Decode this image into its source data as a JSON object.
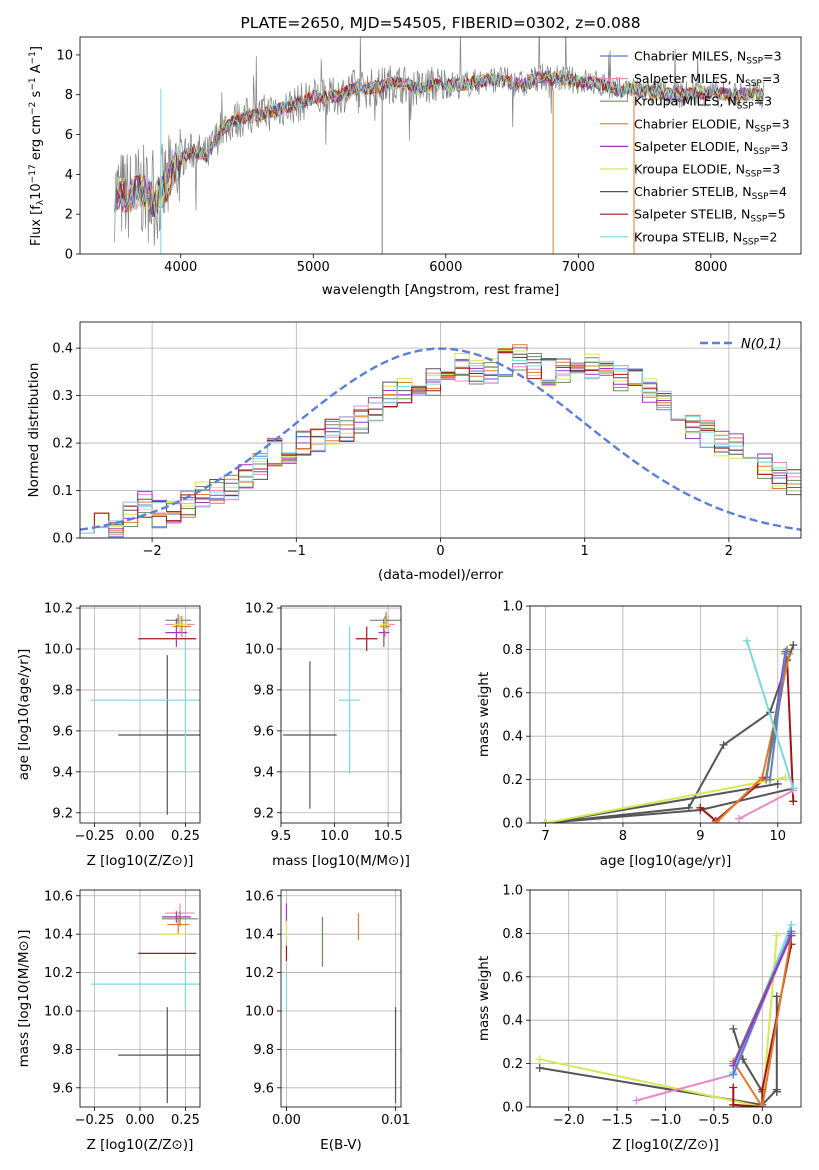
{
  "chart_data": [
    {
      "id": "spectrum",
      "type": "line",
      "title": "PLATE=2650, MJD=54505, FIBERID=0302, z=0.088",
      "xlabel": "wavelength [Angstrom, rest frame]",
      "ylabel": "Flux [f_λ 10^-17 erg cm^-2 s^-1 A^-1]",
      "xlim": [
        3240,
        8680
      ],
      "ylim": [
        0,
        10.9
      ],
      "xticks": [
        4000,
        5000,
        6000,
        7000,
        8000
      ],
      "yticks": [
        0,
        2,
        4,
        6,
        8,
        10
      ],
      "legend_position": "right",
      "legend": [
        {
          "label": "Chabrier MILES, N_SSP=3",
          "color": "#5b7fd6"
        },
        {
          "label": "Salpeter MILES, N_SSP=3",
          "color": "#e88ac6"
        },
        {
          "label": "Kroupa MILES, N_SSP=3",
          "color": "#6b8f5e"
        },
        {
          "label": "Chabrier ELODIE, N_SSP=3",
          "color": "#e07a2e"
        },
        {
          "label": "Salpeter ELODIE, N_SSP=3",
          "color": "#9b36c6"
        },
        {
          "label": "Kroupa ELODIE, N_SSP=3",
          "color": "#d9e65a"
        },
        {
          "label": "Chabrier STELIB, N_SSP=4",
          "color": "#555555"
        },
        {
          "label": "Salpeter STELIB, N_SSP=5",
          "color": "#a01616"
        },
        {
          "label": "Kroupa STELIB, N_SSP=2",
          "color": "#7fd6dc"
        }
      ],
      "data_color": "#808080",
      "x": [
        3500,
        3600,
        3700,
        3800,
        3900,
        4000,
        4100,
        4200,
        4300,
        4400,
        4500,
        4600,
        4700,
        4800,
        4900,
        5000,
        5100,
        5200,
        5300,
        5400,
        5500,
        5600,
        5700,
        5800,
        5900,
        6000,
        6100,
        6200,
        6300,
        6400,
        6500,
        6600,
        6700,
        6800,
        6900,
        7000,
        7100,
        7200,
        7300,
        7400,
        7500,
        7600,
        7700,
        7800,
        7900,
        8000,
        8100,
        8200,
        8300,
        8400
      ],
      "y": [
        3.0,
        2.9,
        3.2,
        2.7,
        3.5,
        4.8,
        5.2,
        4.9,
        6.2,
        6.7,
        6.9,
        7.0,
        7.2,
        7.4,
        7.6,
        7.9,
        7.8,
        8.0,
        8.3,
        8.3,
        8.4,
        8.6,
        8.5,
        8.3,
        8.5,
        8.5,
        8.5,
        8.6,
        8.7,
        8.8,
        8.6,
        8.5,
        8.9,
        8.8,
        8.8,
        8.7,
        8.6,
        8.5,
        8.2,
        8.3,
        8.2,
        8.1,
        8.0,
        8.0,
        8.1,
        8.1,
        8.0,
        8.0,
        8.0,
        8.0
      ]
    },
    {
      "id": "residuals",
      "type": "step",
      "xlabel": "(data-model)/error",
      "ylabel": "Normed distribution",
      "xlim": [
        -2.5,
        2.5
      ],
      "ylim": [
        0,
        0.455
      ],
      "xticks": [
        -2,
        -1,
        0,
        1,
        2
      ],
      "yticks": [
        0.0,
        0.1,
        0.2,
        0.3,
        0.4
      ],
      "legend": [
        {
          "label": "N(0,1)",
          "color": "#5b7fd6"
        }
      ],
      "bin_width": 0.1,
      "bin_start": -2.5,
      "base_values": [
        0.04,
        0.03,
        0.03,
        0.05,
        0.07,
        0.05,
        0.06,
        0.07,
        0.09,
        0.1,
        0.11,
        0.13,
        0.15,
        0.18,
        0.18,
        0.2,
        0.21,
        0.22,
        0.23,
        0.25,
        0.27,
        0.3,
        0.31,
        0.31,
        0.33,
        0.35,
        0.36,
        0.35,
        0.35,
        0.37,
        0.38,
        0.36,
        0.35,
        0.35,
        0.37,
        0.36,
        0.35,
        0.34,
        0.33,
        0.31,
        0.28,
        0.26,
        0.23,
        0.22,
        0.2,
        0.19,
        0.17,
        0.15,
        0.13,
        0.12,
        0.1,
        0.09,
        0.07,
        0.06,
        0.05,
        0.06,
        0.04,
        0.03,
        0.04,
        0.03,
        0.04
      ]
    },
    {
      "id": "age-vs-Z",
      "type": "scatter",
      "xlabel": "Z [log10(Z/Z⊙)]",
      "ylabel": "age  [log10(age/yr)]",
      "xlim": [
        -0.33,
        0.33
      ],
      "ylim": [
        9.15,
        10.21
      ],
      "xticks": [
        -0.25,
        0.0,
        0.25
      ],
      "xticklabels": [
        "−0.25",
        "0.00",
        "0.25"
      ],
      "yticks": [
        9.2,
        9.4,
        9.6,
        9.8,
        10.0,
        10.2
      ],
      "points": [
        {
          "x": 0.15,
          "y": 9.58,
          "xerr": 0.27,
          "yerr": 0.39,
          "color": "#555555"
        },
        {
          "x": 0.25,
          "y": 9.75,
          "xerr": 0.52,
          "yerr": 0.36,
          "color": "#7fd6dc"
        },
        {
          "x": 0.15,
          "y": 10.05,
          "xerr": 0.16,
          "yerr": 0.0,
          "color": "#a01616"
        },
        {
          "x": 0.22,
          "y": 10.12,
          "xerr": 0.08,
          "yerr": 0.04,
          "color": "#e88ac6"
        },
        {
          "x": 0.21,
          "y": 10.14,
          "xerr": 0.07,
          "yerr": 0.03,
          "color": "#6b8f5e"
        },
        {
          "x": 0.2,
          "y": 10.08,
          "xerr": 0.06,
          "yerr": 0.07,
          "color": "#9b36c6"
        },
        {
          "x": 0.23,
          "y": 10.11,
          "xerr": 0.05,
          "yerr": 0.05,
          "color": "#e07a2e"
        },
        {
          "x": 0.22,
          "y": 10.12,
          "xerr": 0.04,
          "yerr": 0.03,
          "color": "#d9e65a"
        }
      ]
    },
    {
      "id": "age-vs-mass",
      "type": "scatter",
      "xlabel": "mass [log10(M/M⊙)]",
      "xlim": [
        9.5,
        10.62
      ],
      "ylim": [
        9.15,
        10.21
      ],
      "xticks": [
        9.5,
        10.0,
        10.5
      ],
      "xticklabels": [
        "9.5",
        "10.0",
        "10.5"
      ],
      "yticks": [
        9.2,
        9.4,
        9.6,
        9.8,
        10.0,
        10.2
      ],
      "points": [
        {
          "x": 9.77,
          "y": 9.58,
          "xerr": 0.25,
          "yerr": 0.36,
          "color": "#555555"
        },
        {
          "x": 10.14,
          "y": 9.75,
          "xerr": 0.1,
          "yerr": 0.36,
          "color": "#7fd6dc"
        },
        {
          "x": 10.3,
          "y": 10.05,
          "xerr": 0.1,
          "yerr": 0.06,
          "color": "#a01616"
        },
        {
          "x": 10.5,
          "y": 10.12,
          "xerr": 0.06,
          "yerr": 0.04,
          "color": "#e88ac6"
        },
        {
          "x": 10.48,
          "y": 10.14,
          "xerr": 0.15,
          "yerr": 0.04,
          "color": "#6b8f5e"
        },
        {
          "x": 10.46,
          "y": 10.08,
          "xerr": 0.05,
          "yerr": 0.07,
          "color": "#9b36c6"
        },
        {
          "x": 10.47,
          "y": 10.11,
          "xerr": 0.05,
          "yerr": 0.05,
          "color": "#e07a2e"
        },
        {
          "x": 10.47,
          "y": 10.12,
          "xerr": 0.04,
          "yerr": 0.03,
          "color": "#d9e65a"
        }
      ]
    },
    {
      "id": "massweight-vs-age",
      "type": "line",
      "xlabel": "age  [log10(age/yr)]",
      "ylabel": "mass weight",
      "xlim": [
        6.8,
        10.3
      ],
      "ylim": [
        0,
        1.0
      ],
      "xticks": [
        7,
        8,
        9,
        10
      ],
      "yticks": [
        0.0,
        0.2,
        0.4,
        0.6,
        0.8,
        1.0
      ],
      "series": [
        {
          "color": "#555555",
          "x": [
            7.0,
            8.85,
            9.3,
            9.9,
            10.2
          ],
          "y": [
            0.0,
            0.07,
            0.36,
            0.51,
            0.82
          ]
        },
        {
          "color": "#555555",
          "x": [
            7.0,
            9.0,
            10.2
          ],
          "y": [
            0.0,
            0.06,
            0.16
          ]
        },
        {
          "color": "#555555",
          "x": [
            7.0,
            10.0
          ],
          "y": [
            0.0,
            0.18
          ]
        },
        {
          "color": "#a01616",
          "x": [
            9.0,
            9.2,
            9.85,
            10.12,
            10.2
          ],
          "y": [
            0.07,
            0.01,
            0.21,
            0.75,
            0.1
          ]
        },
        {
          "color": "#d9e65a",
          "x": [
            7.0,
            10.1
          ],
          "y": [
            0.0,
            0.21
          ]
        },
        {
          "color": "#e07a2e",
          "x": [
            9.2,
            9.8,
            10.15
          ],
          "y": [
            0.0,
            0.21,
            0.78
          ]
        },
        {
          "color": "#9b36c6",
          "x": [
            9.85,
            10.1
          ],
          "y": [
            0.21,
            0.79
          ]
        },
        {
          "color": "#6b8f5e",
          "x": [
            9.85,
            10.12
          ],
          "y": [
            0.2,
            0.8
          ]
        },
        {
          "color": "#e88ac6",
          "x": [
            9.5,
            10.2
          ],
          "y": [
            0.02,
            0.15
          ]
        },
        {
          "color": "#5b7fd6",
          "x": [
            9.9,
            10.1
          ],
          "y": [
            0.2,
            0.78
          ]
        },
        {
          "color": "#7fd6dc",
          "x": [
            9.6,
            10.2
          ],
          "y": [
            0.84,
            0.16
          ]
        }
      ]
    },
    {
      "id": "mass-vs-Z",
      "type": "scatter",
      "xlabel": "Z [log10(Z/Z⊙)]",
      "ylabel": "mass [log10(M/M⊙)]",
      "xlim": [
        -0.33,
        0.33
      ],
      "ylim": [
        9.5,
        10.63
      ],
      "xticks": [
        -0.25,
        0.0,
        0.25
      ],
      "xticklabels": [
        "−0.25",
        "0.00",
        "0.25"
      ],
      "yticks": [
        9.6,
        9.8,
        10.0,
        10.2,
        10.4,
        10.6
      ],
      "points": [
        {
          "x": 0.15,
          "y": 9.77,
          "xerr": 0.27,
          "yerr": 0.25,
          "color": "#555555"
        },
        {
          "x": 0.25,
          "y": 10.14,
          "xerr": 0.52,
          "yerr": 0.13,
          "color": "#7fd6dc"
        },
        {
          "x": 0.15,
          "y": 10.3,
          "xerr": 0.16,
          "yerr": 0.0,
          "color": "#a01616"
        },
        {
          "x": 0.22,
          "y": 10.51,
          "xerr": 0.08,
          "yerr": 0.05,
          "color": "#e88ac6"
        },
        {
          "x": 0.22,
          "y": 10.48,
          "xerr": 0.1,
          "yerr": 0.04,
          "color": "#6b8f5e"
        },
        {
          "x": 0.2,
          "y": 10.49,
          "xerr": 0.08,
          "yerr": 0.03,
          "color": "#9b36c6"
        },
        {
          "x": 0.21,
          "y": 10.45,
          "xerr": 0.06,
          "yerr": 0.05,
          "color": "#e07a2e"
        },
        {
          "x": 0.18,
          "y": 10.4,
          "xerr": 0.08,
          "yerr": 0.0,
          "color": "#d9e65a"
        }
      ]
    },
    {
      "id": "mass-vs-ebv",
      "type": "scatter",
      "xlabel": "E(B-V)",
      "xlim": [
        -0.0005,
        0.0105
      ],
      "ylim": [
        9.5,
        10.63
      ],
      "xticks": [
        0.0,
        0.01
      ],
      "xticklabels": [
        "0.00",
        "0.01"
      ],
      "yticks": [
        9.6,
        9.8,
        10.0,
        10.2,
        10.4,
        10.6
      ],
      "points": [
        {
          "x": 0.01,
          "y": 9.77,
          "xerr": 0.0,
          "yerr": 0.25,
          "color": "#555555"
        },
        {
          "x": 0.0033,
          "y": 10.36,
          "xerr": 0.0,
          "yerr": 0.13,
          "color": "#6b8f5e"
        },
        {
          "x": 0.0066,
          "y": 10.44,
          "xerr": 0.0,
          "yerr": 0.07,
          "color": "#e07a2e"
        },
        {
          "x": 0.0,
          "y": 10.5,
          "xerr": 0.0,
          "yerr": 0.06,
          "color": "#9b36c6"
        },
        {
          "x": 0.0,
          "y": 10.3,
          "xerr": 0.0,
          "yerr": 0.04,
          "color": "#a01616"
        },
        {
          "x": 0.0,
          "y": 10.1,
          "xerr": 0.0,
          "yerr": 0.1,
          "color": "#7fd6dc"
        },
        {
          "x": 0.0,
          "y": 10.42,
          "xerr": 0.0,
          "yerr": 0.05,
          "color": "#d9e65a"
        }
      ]
    },
    {
      "id": "massweight-vs-Z",
      "type": "line",
      "xlabel": "Z [log10(Z/Z⊙)]",
      "ylabel": "mass weight",
      "xlim": [
        -2.4,
        0.4
      ],
      "ylim": [
        0,
        1.0
      ],
      "xticks": [
        -2.0,
        -1.5,
        -1.0,
        -0.5,
        0.0
      ],
      "xticklabels": [
        "−2.0",
        "−1.5",
        "−1.0",
        "−0.5",
        "0.0"
      ],
      "yticks": [
        0.0,
        0.2,
        0.4,
        0.6,
        0.8,
        1.0
      ],
      "series": [
        {
          "color": "#555555",
          "x": [
            -2.3,
            0.0,
            0.15,
            0.15
          ],
          "y": [
            0.18,
            0.01,
            0.08,
            0.07
          ]
        },
        {
          "color": "#555555",
          "x": [
            -0.3,
            -0.2,
            0.0
          ],
          "y": [
            0.36,
            0.22,
            0.07
          ]
        },
        {
          "color": "#555555",
          "x": [
            0.15,
            0.15
          ],
          "y": [
            0.51,
            0.07
          ]
        },
        {
          "color": "#d9e65a",
          "x": [
            -2.3,
            0.0,
            0.15
          ],
          "y": [
            0.22,
            0.0,
            0.79
          ]
        },
        {
          "color": "#a01616",
          "x": [
            -0.3,
            -0.3,
            0.0,
            0.0,
            0.3
          ],
          "y": [
            0.09,
            0.01,
            0.0,
            0.08,
            0.75
          ]
        },
        {
          "color": "#e07a2e",
          "x": [
            -0.3,
            0.0,
            0.3
          ],
          "y": [
            0.21,
            0.0,
            0.79
          ]
        },
        {
          "color": "#e88ac6",
          "x": [
            -1.3,
            -0.3,
            0.3
          ],
          "y": [
            0.03,
            0.15,
            0.8
          ]
        },
        {
          "color": "#7fd6dc",
          "x": [
            -0.3,
            0.3
          ],
          "y": [
            0.16,
            0.84
          ]
        },
        {
          "color": "#6b8f5e",
          "x": [
            -0.3,
            0.3
          ],
          "y": [
            0.2,
            0.8
          ]
        },
        {
          "color": "#5b7fd6",
          "x": [
            -0.3,
            0.3
          ],
          "y": [
            0.15,
            0.81
          ]
        },
        {
          "color": "#9b36c6",
          "x": [
            -0.3,
            0.3
          ],
          "y": [
            0.19,
            0.79
          ]
        }
      ]
    }
  ]
}
